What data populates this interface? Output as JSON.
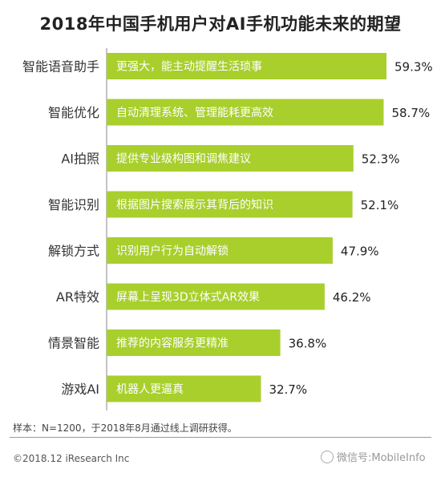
{
  "chart_data": {
    "type": "bar",
    "orientation": "horizontal",
    "title": "2018年中国手机用户对AI手机功能未来的期望",
    "categories": [
      "智能语音助手",
      "智能优化",
      "AI拍照",
      "智能识别",
      "解锁方式",
      "AR特效",
      "情景智能",
      "游戏AI"
    ],
    "descriptions": [
      "更强大，能主动提醒生活琐事",
      "自动清理系统、管理能耗更高效",
      "提供专业级构图和调焦建议",
      "根据图片搜索展示其背后的知识",
      "识别用户行为自动解锁",
      "屏幕上呈现3D立体式AR效果",
      "推荐的内容服务更精准",
      "机器人更逼真"
    ],
    "values": [
      59.3,
      58.7,
      52.3,
      52.1,
      47.9,
      46.2,
      36.8,
      32.7
    ],
    "value_labels": [
      "59.3%",
      "58.7%",
      "52.3%",
      "52.1%",
      "47.9%",
      "46.2%",
      "36.8%",
      "32.7%"
    ],
    "xlim": [
      0,
      70
    ],
    "grid": false,
    "bar_color": "#a8cf2c"
  },
  "note": "样本：N=1200，于2018年8月通过线上调研获得。",
  "copyright": "©2018.12 iResearch Inc",
  "watermark": "微信号:MobileInfo"
}
